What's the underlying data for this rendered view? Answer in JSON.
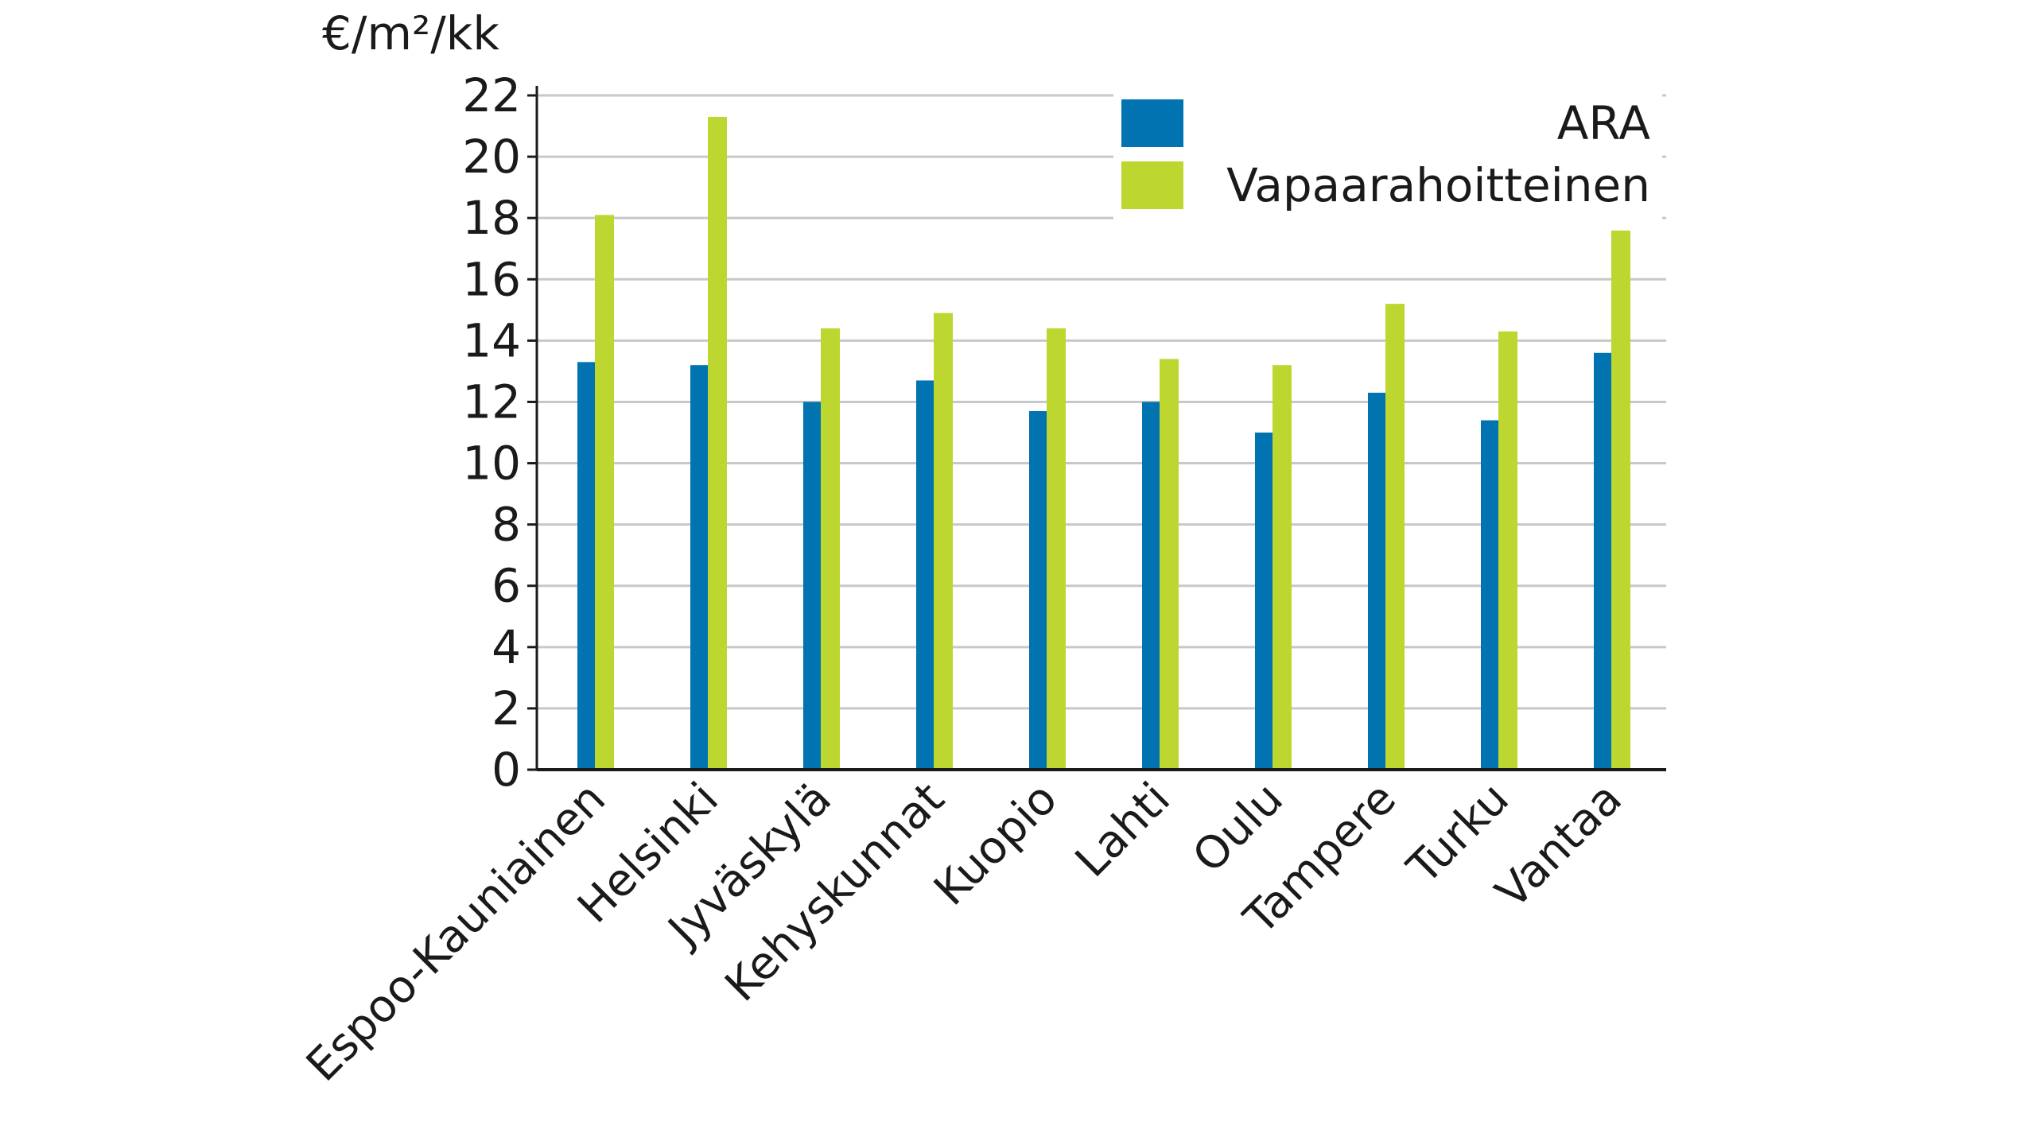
{
  "chart_data": {
    "type": "bar",
    "ylabel": "€/m²/kk",
    "ylim": [
      0,
      22
    ],
    "yticks": [
      0,
      2,
      4,
      6,
      8,
      10,
      12,
      14,
      16,
      18,
      20,
      22
    ],
    "grid": true,
    "legend_position": "top-right",
    "categories": [
      "Espoo-Kauniainen",
      "Helsinki",
      "Jyväskylä",
      "Kehyskunnat",
      "Kuopio",
      "Lahti",
      "Oulu",
      "Tampere",
      "Turku",
      "Vantaa"
    ],
    "series": [
      {
        "name": "ARA",
        "color": "#0073b0",
        "values": [
          13.3,
          13.2,
          12.0,
          12.7,
          11.7,
          12.0,
          11.0,
          12.3,
          11.4,
          13.6
        ]
      },
      {
        "name": "Vapaarahoitteinen",
        "color": "#bed630",
        "values": [
          18.1,
          21.3,
          14.4,
          14.9,
          14.4,
          13.4,
          13.2,
          15.2,
          14.3,
          18.0
        ]
      }
    ]
  }
}
